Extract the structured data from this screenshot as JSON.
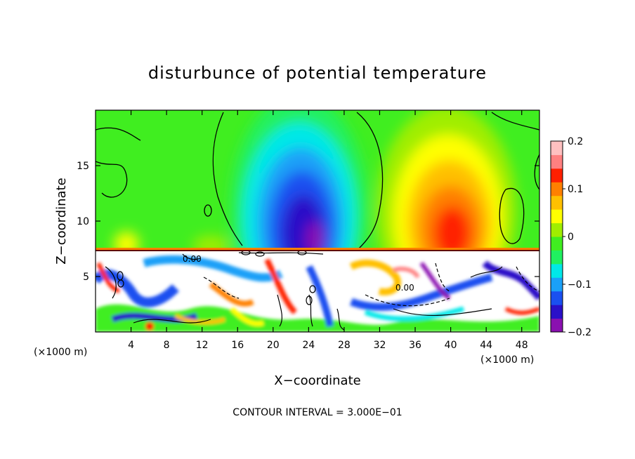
{
  "chart_data": {
    "type": "heatmap",
    "title": "disturbunce of potential temperature",
    "xlabel": "X−coordinate",
    "ylabel": "Z−coordinate",
    "x_unit_left": "(×1000 m)",
    "x_unit_right": "(×1000 m)",
    "xlim": [
      0,
      50
    ],
    "ylim": [
      0,
      20
    ],
    "x_ticks": [
      "4",
      "8",
      "12",
      "16",
      "20",
      "24",
      "28",
      "32",
      "36",
      "40",
      "44",
      "48"
    ],
    "x_tick_values": [
      4,
      8,
      12,
      16,
      20,
      24,
      28,
      32,
      36,
      40,
      44,
      48
    ],
    "y_ticks": [
      "5",
      "10",
      "15"
    ],
    "y_tick_values": [
      5,
      10,
      15
    ],
    "colorbar": {
      "labels": [
        "0.2",
        "0.1",
        "0",
        "−0.1",
        "−0.2"
      ],
      "values": [
        0.2,
        0.1,
        0,
        -0.1,
        -0.2
      ],
      "range": [
        -0.2,
        0.2
      ],
      "colors": [
        "#8a10b0",
        "#2a10c8",
        "#1a50f0",
        "#1aa0f8",
        "#00e8e8",
        "#20f060",
        "#40ee20",
        "#a0ee00",
        "#ffff00",
        "#ffc000",
        "#ff8000",
        "#ff2000",
        "#ff8080",
        "#ffc0c0"
      ]
    },
    "contour_labels": [
      "0.00",
      "0.00"
    ],
    "footer": "CONTOUR INTERVAL = 3.000E−01",
    "features": [
      {
        "name": "cold anomaly",
        "x": 23,
        "z": 11,
        "value": -0.2
      },
      {
        "name": "warm anomaly",
        "x": 39.5,
        "z": 10.5,
        "value": 0.13
      },
      {
        "name": "inversion layer",
        "z": 7.3
      }
    ]
  }
}
